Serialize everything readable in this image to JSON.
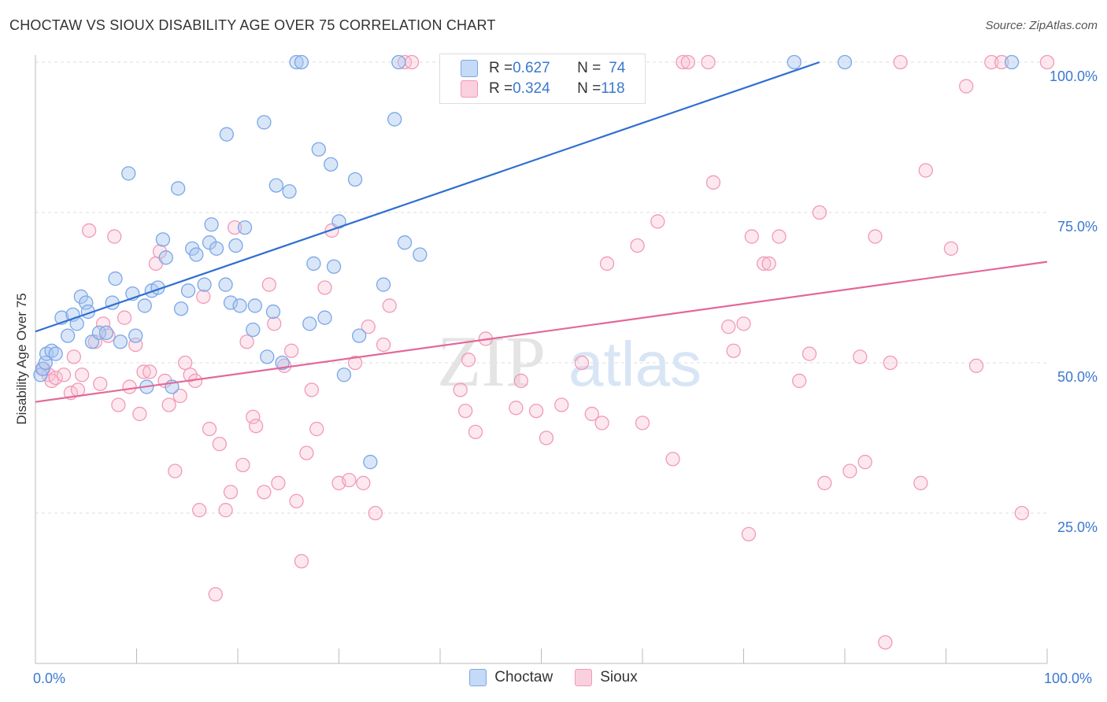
{
  "title": "CHOCTAW VS SIOUX DISABILITY AGE OVER 75 CORRELATION CHART",
  "source": "Source: ZipAtlas.com",
  "watermark": {
    "zip": "ZIP",
    "atlas": "atlas"
  },
  "legend": [
    {
      "name": "Choctaw",
      "r_label": "R = ",
      "r": "0.627",
      "n_label": "N = ",
      "n": "74",
      "color": "#7aa7e8"
    },
    {
      "name": "Sioux",
      "r_label": "R = ",
      "r": "0.324",
      "n_label": "N = ",
      "n": "118",
      "color": "#f19ab6"
    }
  ],
  "x_axis": {
    "min_label": "0.0%",
    "max_label": "100.0%"
  },
  "chart_data": {
    "type": "scatter",
    "ylabel": "Disability Age Over 75",
    "xlim": [
      0,
      100
    ],
    "ylim": [
      0,
      102
    ],
    "y_ticks": [
      {
        "value": 25,
        "label": "25.0%"
      },
      {
        "value": 50,
        "label": "50.0%"
      },
      {
        "value": 75,
        "label": "75.0%"
      },
      {
        "value": 100,
        "label": "100.0%"
      }
    ],
    "grid": "horizontal dashed",
    "series": [
      {
        "name": "Choctaw",
        "color": "#7aa7e8",
        "line_color": "#2f6fd0",
        "trend": {
          "x0": 0,
          "y0": 55.2,
          "x1": 77.5,
          "y1": 100
        },
        "points": [
          [
            0.5,
            48
          ],
          [
            0.7,
            49
          ],
          [
            1.0,
            50
          ],
          [
            1.1,
            51.5
          ],
          [
            1.6,
            52
          ],
          [
            2.0,
            51.5
          ],
          [
            2.6,
            57.5
          ],
          [
            3.2,
            54.5
          ],
          [
            3.7,
            58
          ],
          [
            4.1,
            56.5
          ],
          [
            4.5,
            61
          ],
          [
            5.0,
            60
          ],
          [
            5.2,
            58.5
          ],
          [
            5.6,
            53.5
          ],
          [
            6.3,
            55
          ],
          [
            7.0,
            55
          ],
          [
            7.6,
            60
          ],
          [
            7.9,
            64
          ],
          [
            8.4,
            53.5
          ],
          [
            9.2,
            81.5
          ],
          [
            9.6,
            61.5
          ],
          [
            9.9,
            54.5
          ],
          [
            10.8,
            59.5
          ],
          [
            11.0,
            46
          ],
          [
            11.5,
            62
          ],
          [
            12.1,
            62.5
          ],
          [
            12.6,
            70.5
          ],
          [
            12.9,
            67.5
          ],
          [
            13.5,
            46
          ],
          [
            14.1,
            79
          ],
          [
            14.4,
            59
          ],
          [
            15.1,
            62
          ],
          [
            15.5,
            69
          ],
          [
            15.9,
            68
          ],
          [
            16.7,
            63
          ],
          [
            17.2,
            70
          ],
          [
            17.4,
            73
          ],
          [
            17.9,
            69
          ],
          [
            18.8,
            63
          ],
          [
            18.9,
            88
          ],
          [
            19.3,
            60
          ],
          [
            19.8,
            69.5
          ],
          [
            20.2,
            59.5
          ],
          [
            20.7,
            72.5
          ],
          [
            21.5,
            55.5
          ],
          [
            21.7,
            59.5
          ],
          [
            22.6,
            90
          ],
          [
            22.9,
            51
          ],
          [
            23.5,
            58.5
          ],
          [
            23.8,
            79.5
          ],
          [
            24.4,
            50
          ],
          [
            25.1,
            78.5
          ],
          [
            25.8,
            100
          ],
          [
            26.3,
            100
          ],
          [
            27.1,
            56.5
          ],
          [
            27.5,
            66.5
          ],
          [
            28.0,
            85.5
          ],
          [
            28.6,
            57.5
          ],
          [
            29.2,
            83
          ],
          [
            29.5,
            66
          ],
          [
            30.0,
            73.5
          ],
          [
            30.5,
            48
          ],
          [
            31.6,
            80.5
          ],
          [
            32.0,
            54.5
          ],
          [
            33.1,
            33.5
          ],
          [
            34.4,
            63
          ],
          [
            35.5,
            90.5
          ],
          [
            35.9,
            100
          ],
          [
            36.5,
            70
          ],
          [
            38.0,
            68
          ],
          [
            75.0,
            100
          ],
          [
            80.0,
            100
          ],
          [
            96.5,
            100
          ]
        ]
      },
      {
        "name": "Sioux",
        "color": "#f19ab6",
        "line_color": "#e3689a",
        "trend": {
          "x0": 0,
          "y0": 43.5,
          "x1": 100,
          "y1": 66.8
        },
        "points": [
          [
            0.8,
            49
          ],
          [
            1.3,
            48
          ],
          [
            1.6,
            47
          ],
          [
            2.0,
            47.5
          ],
          [
            2.8,
            48
          ],
          [
            3.5,
            45
          ],
          [
            3.8,
            51
          ],
          [
            4.2,
            45.5
          ],
          [
            4.6,
            48
          ],
          [
            5.3,
            72
          ],
          [
            5.9,
            53.5
          ],
          [
            6.4,
            46.5
          ],
          [
            6.7,
            56.5
          ],
          [
            7.2,
            54.5
          ],
          [
            7.8,
            71
          ],
          [
            8.2,
            43
          ],
          [
            8.8,
            57.5
          ],
          [
            9.3,
            46
          ],
          [
            9.9,
            53
          ],
          [
            10.3,
            41.5
          ],
          [
            10.7,
            48.5
          ],
          [
            11.3,
            48.5
          ],
          [
            11.9,
            66.5
          ],
          [
            12.3,
            68.5
          ],
          [
            12.8,
            47
          ],
          [
            13.2,
            43
          ],
          [
            13.8,
            32
          ],
          [
            14.3,
            44.5
          ],
          [
            14.8,
            50
          ],
          [
            15.3,
            48
          ],
          [
            15.8,
            47
          ],
          [
            16.2,
            25.5
          ],
          [
            16.6,
            61
          ],
          [
            17.2,
            39
          ],
          [
            17.8,
            11.5
          ],
          [
            18.2,
            36.5
          ],
          [
            18.8,
            25.5
          ],
          [
            19.3,
            28.5
          ],
          [
            19.7,
            72.5
          ],
          [
            20.5,
            33
          ],
          [
            20.9,
            53.5
          ],
          [
            21.5,
            41
          ],
          [
            21.8,
            39.5
          ],
          [
            22.6,
            28.5
          ],
          [
            23.1,
            63
          ],
          [
            23.6,
            56.5
          ],
          [
            24.0,
            30
          ],
          [
            24.6,
            49.5
          ],
          [
            25.3,
            52
          ],
          [
            25.8,
            27
          ],
          [
            26.3,
            17
          ],
          [
            26.8,
            35
          ],
          [
            27.3,
            45.5
          ],
          [
            27.8,
            39
          ],
          [
            28.6,
            62.5
          ],
          [
            29.3,
            72
          ],
          [
            30.0,
            30
          ],
          [
            31.0,
            30.5
          ],
          [
            31.6,
            50
          ],
          [
            32.4,
            30
          ],
          [
            32.9,
            56
          ],
          [
            33.6,
            25
          ],
          [
            34.4,
            53
          ],
          [
            35.0,
            59.5
          ],
          [
            36.5,
            100
          ],
          [
            37.2,
            100
          ],
          [
            41.0,
            100
          ],
          [
            42.0,
            45.5
          ],
          [
            42.5,
            42
          ],
          [
            42.8,
            50.5
          ],
          [
            43.5,
            38.5
          ],
          [
            44.5,
            54
          ],
          [
            47.5,
            42.5
          ],
          [
            48.0,
            47
          ],
          [
            49.5,
            42
          ],
          [
            50.5,
            37.5
          ],
          [
            52.0,
            43
          ],
          [
            54.0,
            50
          ],
          [
            55.0,
            41.5
          ],
          [
            56.0,
            40
          ],
          [
            56.5,
            66.5
          ],
          [
            59.5,
            69.5
          ],
          [
            60.0,
            40
          ],
          [
            61.5,
            73.5
          ],
          [
            63.0,
            34
          ],
          [
            64.0,
            100
          ],
          [
            64.5,
            100
          ],
          [
            66.5,
            100
          ],
          [
            67.0,
            80
          ],
          [
            68.5,
            56
          ],
          [
            69.0,
            52
          ],
          [
            70.0,
            56.5
          ],
          [
            70.5,
            21.5
          ],
          [
            70.8,
            71
          ],
          [
            72.0,
            66.5
          ],
          [
            72.5,
            66.5
          ],
          [
            73.5,
            71
          ],
          [
            75.5,
            47
          ],
          [
            76.5,
            51.5
          ],
          [
            77.5,
            75
          ],
          [
            78.0,
            30
          ],
          [
            80.5,
            32
          ],
          [
            81.5,
            51
          ],
          [
            82.0,
            33.5
          ],
          [
            83.0,
            71
          ],
          [
            84.0,
            3.5
          ],
          [
            84.5,
            50
          ],
          [
            85.5,
            100
          ],
          [
            87.5,
            30
          ],
          [
            88.0,
            82
          ],
          [
            90.5,
            69
          ],
          [
            92.0,
            96
          ],
          [
            93.0,
            49.5
          ],
          [
            94.5,
            100
          ],
          [
            95.5,
            100
          ],
          [
            97.5,
            25
          ],
          [
            100.0,
            100
          ]
        ]
      }
    ]
  }
}
